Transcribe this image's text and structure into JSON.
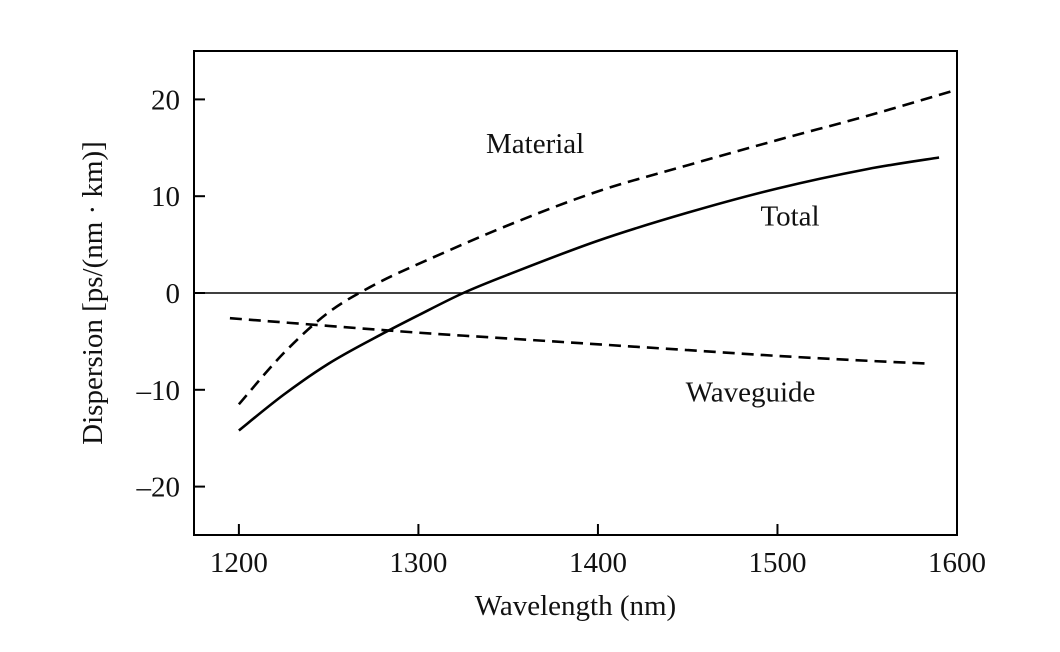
{
  "chart_data": {
    "type": "line",
    "title": "",
    "xlabel": "Wavelength (nm)",
    "ylabel": "Dispersion [ps/(nm · km)]",
    "xlim": [
      1175,
      1600
    ],
    "ylim": [
      -25,
      25
    ],
    "xticks": [
      1200,
      1300,
      1400,
      1500,
      1600
    ],
    "yticks": [
      -20,
      -10,
      0,
      10,
      20
    ],
    "xtick_labels": [
      "1200",
      "1300",
      "1400",
      "1500",
      "1600"
    ],
    "ytick_labels": [
      "–20",
      "–10",
      "0",
      "10",
      "20"
    ],
    "grid": false,
    "zero_line": true,
    "legend": "none (series labeled directly on curves)",
    "series": [
      {
        "name": "Material",
        "style": "dashed",
        "color": "#000000",
        "x": [
          1200,
          1225,
          1250,
          1275,
          1300,
          1350,
          1400,
          1450,
          1500,
          1550,
          1600
        ],
        "y": [
          -11.5,
          -6.2,
          -2.0,
          0.8,
          3.0,
          7.0,
          10.5,
          13.2,
          15.8,
          18.3,
          21.0
        ]
      },
      {
        "name": "Total",
        "style": "solid",
        "color": "#000000",
        "x": [
          1200,
          1225,
          1250,
          1275,
          1300,
          1325,
          1350,
          1400,
          1450,
          1500,
          1550,
          1590
        ],
        "y": [
          -14.2,
          -10.5,
          -7.3,
          -4.7,
          -2.3,
          0.0,
          1.9,
          5.4,
          8.3,
          10.8,
          12.8,
          14.0
        ]
      },
      {
        "name": "Waveguide",
        "style": "dashed",
        "color": "#000000",
        "x": [
          1195,
          1250,
          1300,
          1350,
          1400,
          1450,
          1500,
          1550,
          1585
        ],
        "y": [
          -2.6,
          -3.4,
          -4.1,
          -4.7,
          -5.3,
          -5.9,
          -6.5,
          -7.0,
          -7.3
        ]
      }
    ],
    "annotations": [
      {
        "text": "Material",
        "series": "Material",
        "x": 1365,
        "y": 15.5
      },
      {
        "text": "Total",
        "series": "Total",
        "x": 1507,
        "y": 8.0
      },
      {
        "text": "Waveguide",
        "series": "Waveguide",
        "x": 1485,
        "y": -10.2
      }
    ]
  }
}
